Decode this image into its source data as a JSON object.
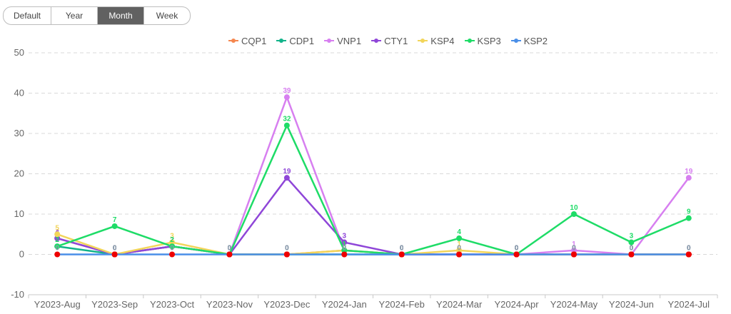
{
  "toolbar": {
    "buttons": [
      {
        "label": "Default",
        "active": false
      },
      {
        "label": "Year",
        "active": false
      },
      {
        "label": "Month",
        "active": true
      },
      {
        "label": "Week",
        "active": false
      }
    ]
  },
  "chart_data": {
    "type": "line",
    "title": "",
    "xlabel": "",
    "ylabel": "",
    "ylim": [
      -10,
      50
    ],
    "yticks": [
      -10,
      0,
      10,
      20,
      30,
      40,
      50
    ],
    "grid": true,
    "legend_position": "top-center",
    "categories": [
      "Y2023-Aug",
      "Y2023-Sep",
      "Y2023-Oct",
      "Y2023-Nov",
      "Y2023-Dec",
      "Y2024-Jan",
      "Y2024-Feb",
      "Y2024-Mar",
      "Y2024-Apr",
      "Y2024-May",
      "Y2024-Jun",
      "Y2024-Jul"
    ],
    "series": [
      {
        "name": "CQP1",
        "color": "#f5874f",
        "values": [
          4,
          0,
          2,
          0,
          0,
          1,
          0,
          0,
          0,
          0,
          0,
          0
        ]
      },
      {
        "name": "CDP1",
        "color": "#11b38a",
        "values": [
          2,
          0,
          2,
          0,
          0,
          0,
          0,
          0,
          0,
          0,
          0,
          0
        ]
      },
      {
        "name": "VNP1",
        "color": "#d77ff0",
        "values": [
          4,
          0,
          2,
          0,
          39,
          1,
          0,
          0,
          0,
          1,
          0,
          19
        ]
      },
      {
        "name": "CTY1",
        "color": "#8f46d8",
        "values": [
          4,
          0,
          2,
          0,
          19,
          3,
          0,
          0,
          0,
          0,
          0,
          0
        ]
      },
      {
        "name": "KSP4",
        "color": "#f2d55a",
        "values": [
          5,
          0,
          3,
          0,
          0,
          1,
          0,
          1,
          0,
          0,
          0,
          0
        ]
      },
      {
        "name": "KSP3",
        "color": "#1edc67",
        "values": [
          2,
          7,
          2,
          0,
          32,
          1,
          0,
          4,
          0,
          10,
          3,
          9
        ]
      },
      {
        "name": "KSP2",
        "color": "#4a8fe8",
        "values": [
          0,
          0,
          0,
          0,
          0,
          0,
          0,
          0,
          0,
          0,
          0,
          0
        ]
      }
    ],
    "zero_marker_color": "#ee0000"
  }
}
